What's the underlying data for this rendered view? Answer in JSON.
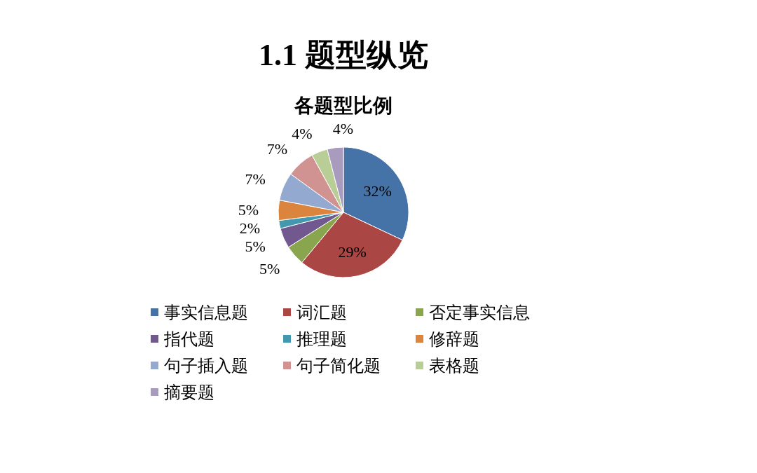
{
  "chart_data": {
    "type": "pie",
    "title": "1.1 题型纵览",
    "subtitle": "各题型比例",
    "categories": [
      "事实信息题",
      "词汇题",
      "否定事实信息",
      "指代题",
      "推理题",
      "修辞题",
      "句子插入题",
      "句子简化题",
      "表格题",
      "摘要题"
    ],
    "values": [
      32,
      29,
      5,
      5,
      2,
      5,
      7,
      7,
      4,
      4
    ],
    "colors": [
      "#4572a7",
      "#aa4643",
      "#89a54e",
      "#71588f",
      "#4198af",
      "#db843d",
      "#93a9cf",
      "#d19392",
      "#b9cd96",
      "#a99bbd"
    ],
    "value_labels": [
      "32%",
      "29%",
      "5%",
      "5%",
      "2%",
      "5%",
      "7%",
      "7%",
      "4%",
      "4%"
    ],
    "legend": "bottom"
  }
}
